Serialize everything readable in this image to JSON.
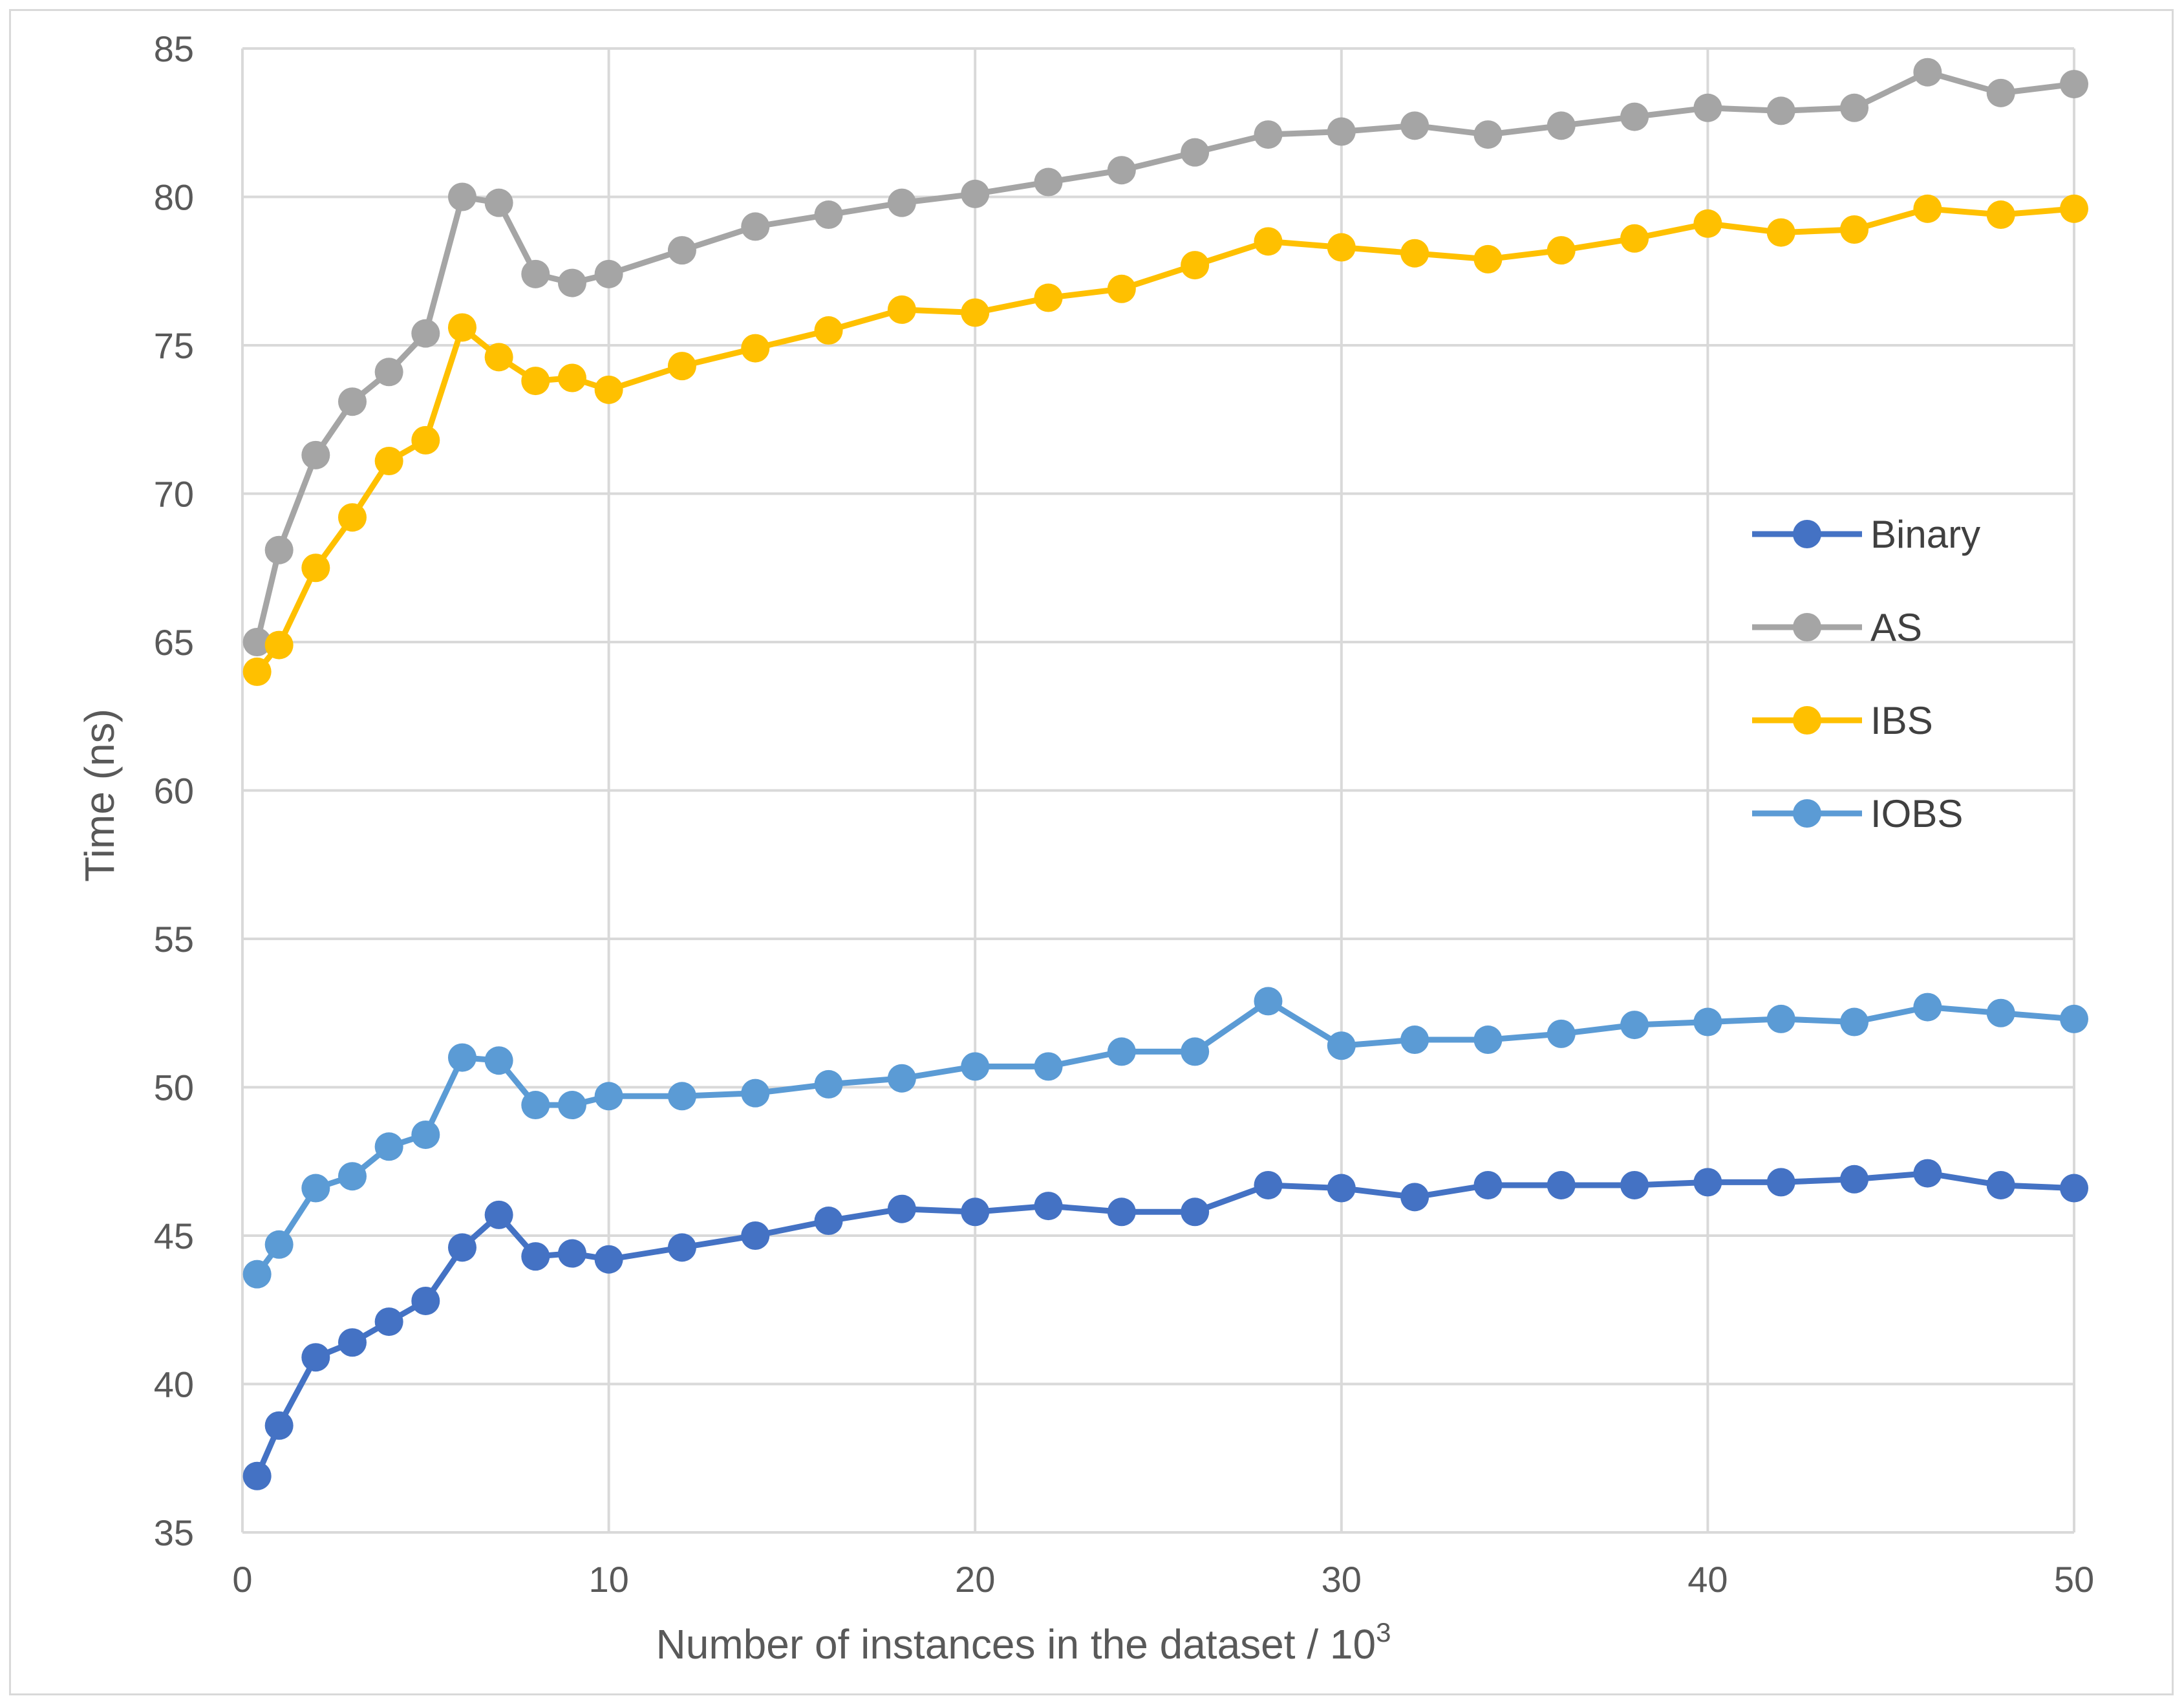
{
  "chart_data": {
    "type": "line",
    "title": "",
    "xlabel": "Number of instances in the dataset / 10",
    "xlabel_superscript": "3",
    "ylabel": "Time (ns)",
    "xlim": [
      0,
      50
    ],
    "ylim": [
      35,
      85
    ],
    "xticks": [
      0,
      10,
      20,
      30,
      40,
      50
    ],
    "yticks": [
      35,
      40,
      45,
      50,
      55,
      60,
      65,
      70,
      75,
      80,
      85
    ],
    "grid": true,
    "legend_position": "right",
    "x": [
      0.4,
      1,
      2,
      3,
      4,
      5,
      6,
      7,
      8,
      9,
      10,
      12,
      14,
      16,
      18,
      20,
      22,
      24,
      26,
      28,
      30,
      32,
      34,
      36,
      38,
      40,
      42,
      44,
      46,
      48,
      50
    ],
    "series": [
      {
        "name": "Binary",
        "color": "#4472c4",
        "values": [
          36.9,
          38.6,
          40.9,
          41.4,
          42.1,
          42.8,
          44.6,
          45.7,
          44.3,
          44.4,
          44.2,
          44.6,
          45.0,
          45.5,
          45.9,
          45.8,
          46.0,
          45.8,
          45.8,
          46.7,
          46.6,
          46.3,
          46.7,
          46.7,
          46.7,
          46.8,
          46.8,
          46.9,
          47.1,
          46.7,
          46.6
        ]
      },
      {
        "name": "AS",
        "color": "#a5a5a5",
        "values": [
          65.0,
          68.1,
          71.3,
          73.1,
          74.1,
          75.4,
          80.0,
          79.8,
          77.4,
          77.1,
          77.4,
          78.2,
          79.0,
          79.4,
          79.8,
          80.1,
          80.5,
          80.9,
          81.5,
          82.1,
          82.2,
          82.4,
          82.1,
          82.4,
          82.7,
          83.0,
          82.9,
          83.0,
          84.2,
          83.5,
          83.8
        ]
      },
      {
        "name": "IBS",
        "color": "#ffc000",
        "values": [
          64.0,
          64.9,
          67.5,
          69.2,
          71.1,
          71.8,
          75.6,
          74.6,
          73.8,
          73.9,
          73.5,
          74.3,
          74.9,
          75.5,
          76.2,
          76.1,
          76.6,
          76.9,
          77.7,
          78.5,
          78.3,
          78.1,
          77.9,
          78.2,
          78.6,
          79.1,
          78.8,
          78.9,
          79.6,
          79.4,
          79.6
        ]
      },
      {
        "name": "IOBS",
        "color": "#5b9bd5",
        "values": [
          43.7,
          44.7,
          46.6,
          47.0,
          48.0,
          48.4,
          51.0,
          50.9,
          49.4,
          49.4,
          49.7,
          49.7,
          49.8,
          50.1,
          50.3,
          50.7,
          50.7,
          51.2,
          51.2,
          52.9,
          51.4,
          51.6,
          51.6,
          51.8,
          52.1,
          52.2,
          52.3,
          52.2,
          52.7,
          52.5,
          52.3
        ]
      }
    ]
  }
}
